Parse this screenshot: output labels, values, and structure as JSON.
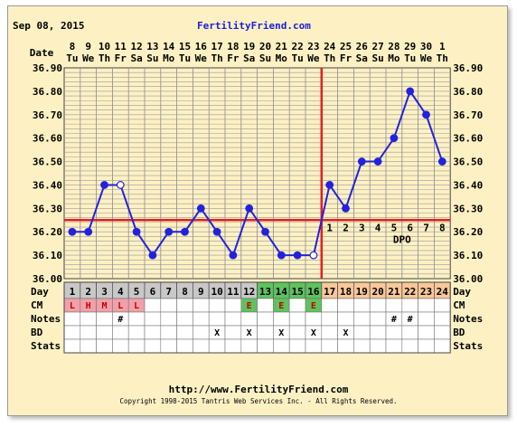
{
  "header": {
    "date": "Sep 08, 2015",
    "site": "FertilityFriend.com"
  },
  "footer": {
    "url": "http://www.FertilityFriend.com",
    "copyright": "Copyright 1998-2015 Tantris Web Services Inc. - All Rights Reserved."
  },
  "row_labels": {
    "date": "Date",
    "day": "Day",
    "cm": "CM",
    "notes": "Notes",
    "bd": "BD",
    "stats": "Stats"
  },
  "colors": {
    "line": "#2222dd",
    "coverline": "#e02020",
    "period_cell": "#f0a0a8",
    "fertile_cell": "#5fc25f",
    "luteal_cell": "#f8c89a",
    "follicular_cell": "#c8c8c8",
    "background": "#fdf1c4"
  },
  "chart_data": {
    "type": "line",
    "title": "",
    "xlabel": "",
    "ylabel": "",
    "ylim": [
      36.0,
      36.9
    ],
    "yticks": [
      "36.00",
      "36.10",
      "36.20",
      "36.30",
      "36.40",
      "36.50",
      "36.60",
      "36.70",
      "36.80",
      "36.90"
    ],
    "grid": true,
    "dates": [
      "8",
      "9",
      "10",
      "11",
      "12",
      "13",
      "14",
      "15",
      "16",
      "17",
      "18",
      "19",
      "20",
      "21",
      "22",
      "23",
      "24",
      "25",
      "26",
      "27",
      "28",
      "29",
      "30",
      "1"
    ],
    "weekdays": [
      "Tu",
      "We",
      "Th",
      "Fr",
      "Sa",
      "Su",
      "Mo",
      "Tu",
      "We",
      "Th",
      "Fr",
      "Sa",
      "Su",
      "Mo",
      "Tu",
      "We",
      "Th",
      "Fr",
      "Sa",
      "Su",
      "Mo",
      "Tu",
      "We",
      "Th"
    ],
    "cycle_days": [
      "1",
      "2",
      "3",
      "4",
      "5",
      "6",
      "7",
      "8",
      "9",
      "10",
      "11",
      "12",
      "13",
      "14",
      "15",
      "16",
      "17",
      "18",
      "19",
      "20",
      "21",
      "22",
      "23",
      "24"
    ],
    "temperatures": [
      36.2,
      36.2,
      36.4,
      36.4,
      36.2,
      36.1,
      36.2,
      36.2,
      36.3,
      36.2,
      36.1,
      36.3,
      36.2,
      36.1,
      36.1,
      36.1,
      36.4,
      36.3,
      36.5,
      36.5,
      36.6,
      36.8,
      36.7,
      36.5
    ],
    "open_points": [
      4,
      16
    ],
    "coverline": 36.25,
    "ovulation_day": 16,
    "dpo_labels": [
      "1",
      "2",
      "3",
      "4",
      "5",
      "6",
      "7",
      "8"
    ],
    "dpo_text": "DPO",
    "cm": [
      "L",
      "H",
      "M",
      "L",
      "L",
      "",
      "",
      "",
      "",
      "",
      "",
      "E",
      "",
      "E",
      "",
      "E",
      "",
      "",
      "",
      "",
      "",
      "",
      "",
      ""
    ],
    "notes": [
      "",
      "",
      "",
      "#",
      "",
      "",
      "",
      "",
      "",
      "",
      "",
      "",
      "",
      "",
      "",
      "",
      "",
      "",
      "",
      "",
      "#",
      "#",
      "",
      ""
    ],
    "bd": [
      "",
      "",
      "",
      "",
      "",
      "",
      "",
      "",
      "",
      "X",
      "",
      "X",
      "",
      "X",
      "",
      "X",
      "",
      "X",
      "",
      "",
      "",
      "",
      "",
      ""
    ],
    "stats": [
      "",
      "",
      "",
      "",
      "",
      "",
      "",
      "",
      "",
      "",
      "",
      "",
      "",
      "",
      "",
      "",
      "",
      "",
      "",
      "",
      "",
      "",
      "",
      ""
    ],
    "period_days": [
      1,
      2,
      3,
      4,
      5
    ],
    "fertile_days": [
      13,
      14,
      15,
      16
    ],
    "luteal_days": [
      17,
      18,
      19,
      20,
      21,
      22,
      23,
      24
    ]
  }
}
